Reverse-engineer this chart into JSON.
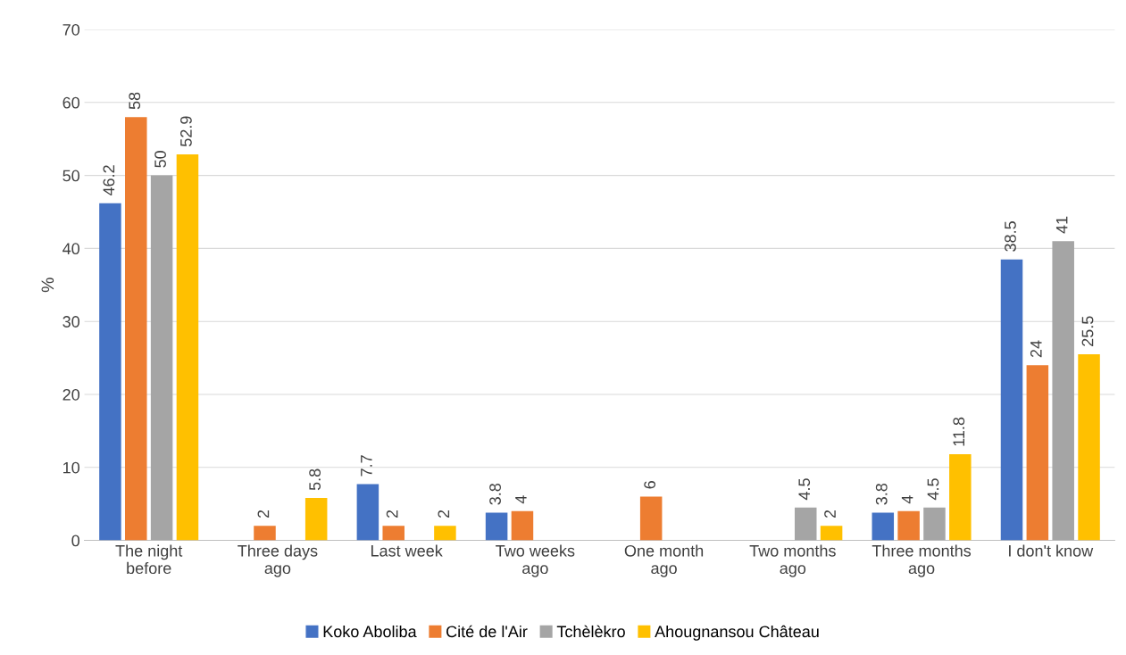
{
  "chart_data": {
    "type": "bar",
    "ylabel": "%",
    "categories": [
      "The night\nbefore",
      "Three days\nago",
      "Last week",
      "Two weeks\nago",
      "One month\nago",
      "Two months\nago",
      "Three months\nago",
      "I don't know"
    ],
    "series": [
      {
        "name": "Koko Aboliba",
        "color": "#4472c4",
        "values": [
          46.2,
          null,
          7.7,
          3.8,
          null,
          null,
          3.8,
          38.5
        ]
      },
      {
        "name": "Cité de l'Air",
        "color": "#ed7d31",
        "values": [
          58,
          2,
          2,
          4,
          6,
          null,
          4,
          24
        ]
      },
      {
        "name": "Tchèlèkro",
        "color": "#a5a5a5",
        "values": [
          50,
          null,
          null,
          null,
          null,
          4.5,
          4.5,
          41
        ]
      },
      {
        "name": "Ahougnansou Château",
        "color": "#ffc000",
        "values": [
          52.9,
          5.8,
          2,
          null,
          null,
          2,
          11.8,
          25.5
        ]
      }
    ],
    "ylim": [
      0,
      70
    ],
    "yticks": [
      0,
      10,
      20,
      30,
      40,
      50,
      60,
      70
    ],
    "grid": "y",
    "legend": "bottom",
    "data_labels": true
  }
}
